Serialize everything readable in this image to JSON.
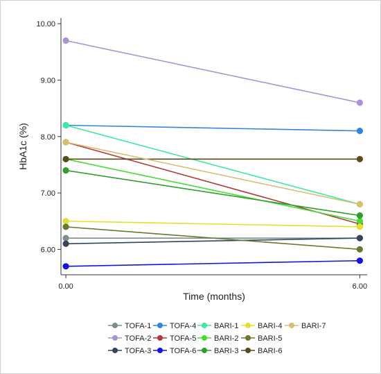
{
  "chart_data": {
    "type": "line",
    "title": "",
    "xlabel": "Time (months)",
    "ylabel": "HbA1c (%)",
    "x": [
      0,
      6
    ],
    "x_tick_labels": [
      "0.00",
      "6.00"
    ],
    "xlim": [
      -0.1,
      6.15
    ],
    "ylim": [
      5.55,
      10.1
    ],
    "y_ticks": [
      6,
      7,
      8,
      9,
      10
    ],
    "y_tick_labels": [
      "6.00",
      "7.00",
      "8.00",
      "9.00",
      "10.00"
    ],
    "grid": false,
    "legend": {
      "placement": "bottom",
      "columns": 5
    },
    "series": [
      {
        "name": "TOFA-1",
        "values": [
          6.2,
          6.2
        ],
        "color": "#7f8c8d"
      },
      {
        "name": "TOFA-2",
        "values": [
          9.7,
          8.6
        ],
        "color": "#a993d6"
      },
      {
        "name": "TOFA-3",
        "values": [
          6.1,
          6.2
        ],
        "color": "#34455f"
      },
      {
        "name": "TOFA-4",
        "values": [
          8.2,
          8.1
        ],
        "color": "#2f86de"
      },
      {
        "name": "TOFA-5",
        "values": [
          7.9,
          6.45
        ],
        "color": "#b03a3a"
      },
      {
        "name": "TOFA-6",
        "values": [
          5.7,
          5.8
        ],
        "color": "#1414e0"
      },
      {
        "name": "BARI-1",
        "values": [
          8.2,
          6.8
        ],
        "color": "#3ee8a0"
      },
      {
        "name": "BARI-2",
        "values": [
          7.6,
          6.5
        ],
        "color": "#44dd33"
      },
      {
        "name": "BARI-3",
        "values": [
          7.4,
          6.6
        ],
        "color": "#2f9e2f"
      },
      {
        "name": "BARI-4",
        "values": [
          6.5,
          6.4
        ],
        "color": "#e6e02c"
      },
      {
        "name": "BARI-5",
        "values": [
          6.4,
          6.0
        ],
        "color": "#667a33"
      },
      {
        "name": "BARI-6",
        "values": [
          7.6,
          7.6
        ],
        "color": "#5a4a1e"
      },
      {
        "name": "BARI-7",
        "values": [
          7.9,
          6.8
        ],
        "color": "#d6c070"
      }
    ]
  }
}
